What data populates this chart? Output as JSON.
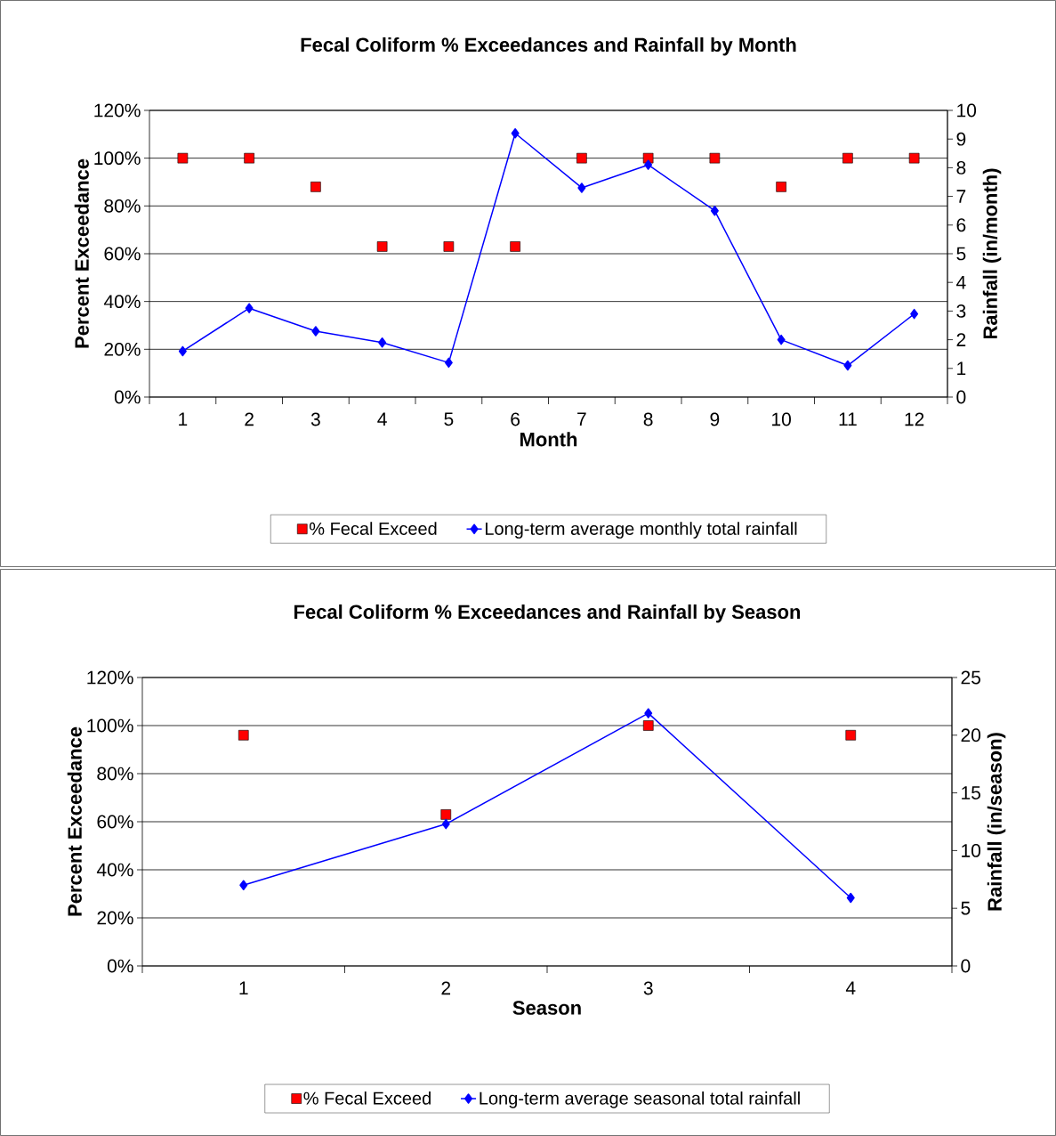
{
  "chart_data": [
    {
      "type": "line",
      "title": "Fecal Coliform %  Exceedances and Rainfall by Month",
      "xlabel": "Month",
      "ylabel": "Percent Exceedance",
      "y2label": "Rainfall (in/month)",
      "categories": [
        "1",
        "2",
        "3",
        "4",
        "5",
        "6",
        "7",
        "8",
        "9",
        "10",
        "11",
        "12"
      ],
      "series": [
        {
          "name": "% Fecal Exceed",
          "type": "scatter",
          "marker": "square",
          "color": "#ff0000",
          "values": [
            100,
            100,
            88,
            63,
            63,
            63,
            100,
            100,
            100,
            88,
            100,
            100
          ]
        },
        {
          "name": "Long-term average monthly total rainfall",
          "axis": "y2",
          "marker": "diamond",
          "color": "#0000ff",
          "values": [
            1.6,
            3.1,
            2.3,
            1.9,
            1.2,
            9.2,
            7.3,
            8.1,
            6.5,
            2.0,
            1.1,
            2.9
          ]
        }
      ],
      "ylim": [
        0,
        120
      ],
      "yticks": [
        {
          "value": 0,
          "label": "0%"
        },
        {
          "value": 20,
          "label": "20%"
        },
        {
          "value": 40,
          "label": "40%"
        },
        {
          "value": 60,
          "label": "60%"
        },
        {
          "value": 80,
          "label": "80%"
        },
        {
          "value": 100,
          "label": "100%"
        },
        {
          "value": 120,
          "label": "120%"
        }
      ],
      "y2lim": [
        0,
        10
      ],
      "y2ticks": [
        0,
        1,
        2,
        3,
        4,
        5,
        6,
        7,
        8,
        9,
        10
      ],
      "grid": "y",
      "legend": "bottom"
    },
    {
      "type": "line",
      "title": "Fecal Coliform %  Exceedances and Rainfall by Season",
      "xlabel": "Season",
      "ylabel": "Percent Exceedance",
      "y2label": "Rainfall (in/season)",
      "categories": [
        "1",
        "2",
        "3",
        "4"
      ],
      "series": [
        {
          "name": "% Fecal Exceed",
          "type": "scatter",
          "marker": "square",
          "color": "#ff0000",
          "values": [
            96,
            63,
            100,
            96
          ]
        },
        {
          "name": "Long-term average seasonal total rainfall",
          "axis": "y2",
          "marker": "diamond",
          "color": "#0000ff",
          "values": [
            7.0,
            12.3,
            21.9,
            5.9
          ]
        }
      ],
      "ylim": [
        0,
        120
      ],
      "yticks": [
        {
          "value": 0,
          "label": "0%"
        },
        {
          "value": 20,
          "label": "20%"
        },
        {
          "value": 40,
          "label": "40%"
        },
        {
          "value": 60,
          "label": "60%"
        },
        {
          "value": 80,
          "label": "80%"
        },
        {
          "value": 100,
          "label": "100%"
        },
        {
          "value": 120,
          "label": "120%"
        }
      ],
      "y2lim": [
        0,
        25
      ],
      "y2ticks": [
        0,
        5,
        10,
        15,
        20,
        25
      ],
      "grid": "y",
      "legend": "bottom"
    }
  ]
}
